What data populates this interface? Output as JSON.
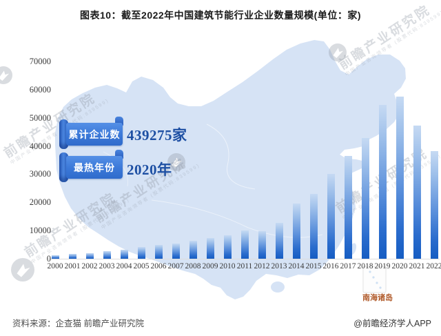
{
  "title": "图表10：截至2022年中国建筑节能行业企业数量规模(单位：家)",
  "badges": [
    {
      "label": "累计企业数",
      "value": "439275家"
    },
    {
      "label": "最热年份",
      "value": "2020年"
    }
  ],
  "map_label": "南海诸岛",
  "watermark": {
    "text": "前瞻产业研究院",
    "subtext": "中国产业咨询领导者 (股票代码:839599)"
  },
  "footer": {
    "source": "资料来源：企查猫 前瞻产业研究院",
    "credit": "@前瞻经济学人APP"
  },
  "colors": {
    "bar_top": "#c6daf3",
    "bar_bottom": "#155cc2",
    "map_fill": "#d6e3f5",
    "badge_blue": "#3b78d8",
    "value_text": "#1d4fa3",
    "sea_label": "#b05a2a",
    "axis_line": "#dddddd"
  },
  "chart_data": {
    "type": "bar",
    "title": "截至2022年中国建筑节能行业企业数量规模",
    "unit": "家",
    "categories": [
      2000,
      2001,
      2002,
      2003,
      2004,
      2005,
      2006,
      2007,
      2008,
      2009,
      2010,
      2011,
      2012,
      2013,
      2014,
      2015,
      2016,
      2017,
      2018,
      2019,
      2020,
      2021,
      2022
    ],
    "values": [
      1200,
      1600,
      2000,
      2800,
      3200,
      4100,
      4900,
      5500,
      6400,
      7300,
      8400,
      10000,
      9700,
      12800,
      19500,
      23000,
      30000,
      36500,
      42800,
      54700,
      57400,
      47200,
      38100
    ],
    "ylim": [
      0,
      70000
    ],
    "yticks": [
      0,
      10000,
      20000,
      30000,
      40000,
      50000,
      60000,
      70000
    ],
    "grid": false,
    "legend": null,
    "annotations": [
      {
        "label": "累计企业数",
        "value": "439275家"
      },
      {
        "label": "最热年份",
        "value": "2020年"
      }
    ]
  }
}
